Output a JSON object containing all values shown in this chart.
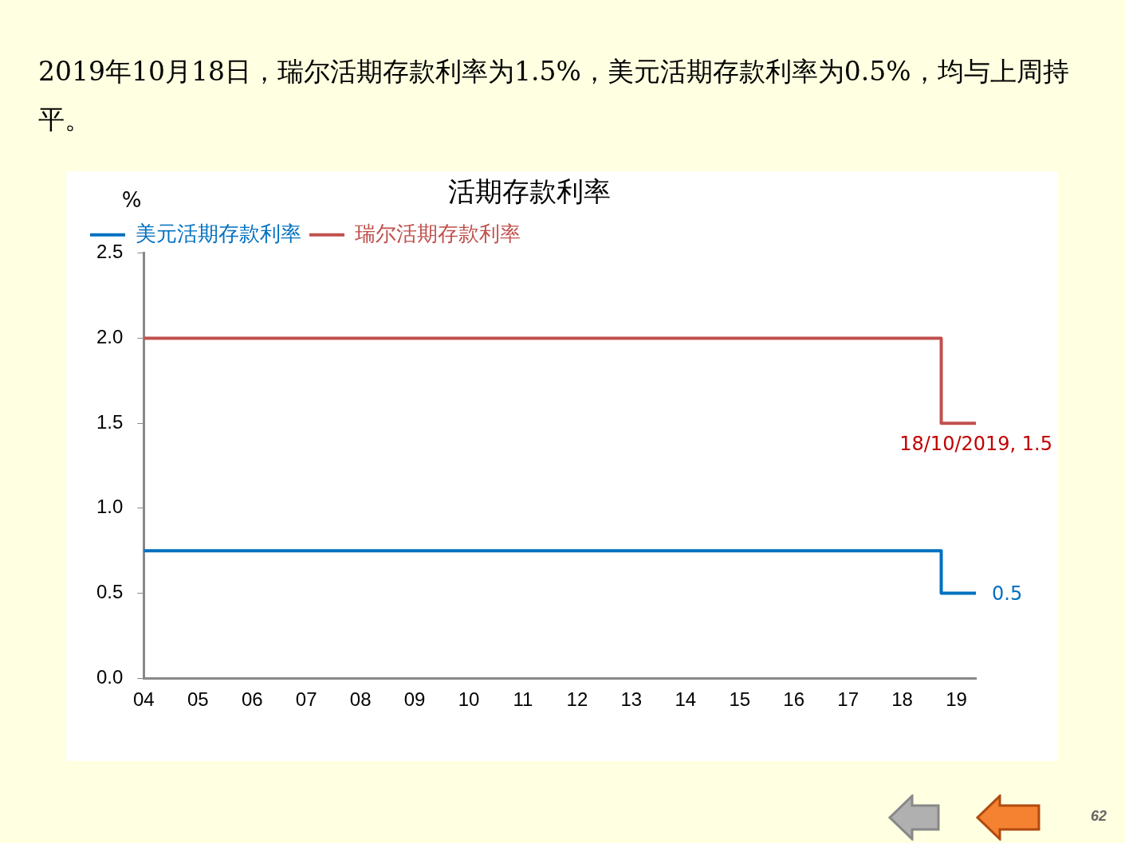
{
  "chart_data": {
    "type": "step",
    "title": "活期存款利率",
    "subtitle": "2019年10月18日，瑞尔活期存款利率为1.5%，美元活期存款利率为0.5%，均与上周持平。",
    "ylabel": "%",
    "x": [
      2004,
      2018.72,
      2019.36
    ],
    "series": [
      {
        "name": "美元活期存款利率",
        "color": "#0070c0",
        "values": [
          0.75,
          0.5,
          0.5
        ]
      },
      {
        "name": "瑞尔活期存款利率",
        "color": "#c0504d",
        "values": [
          2.0,
          1.5,
          1.5
        ]
      }
    ],
    "xlim": [
      2004,
      2019.36
    ],
    "xticks": [
      {
        "value": 2004,
        "label": "04"
      },
      {
        "value": 2005,
        "label": "05"
      },
      {
        "value": 2006,
        "label": "06"
      },
      {
        "value": 2007,
        "label": "07"
      },
      {
        "value": 2008,
        "label": "08"
      },
      {
        "value": 2009,
        "label": "09"
      },
      {
        "value": 2010,
        "label": "10"
      },
      {
        "value": 2011,
        "label": "11"
      },
      {
        "value": 2012,
        "label": "12"
      },
      {
        "value": 2013,
        "label": "13"
      },
      {
        "value": 2014,
        "label": "14"
      },
      {
        "value": 2015,
        "label": "15"
      },
      {
        "value": 2016,
        "label": "16"
      },
      {
        "value": 2017,
        "label": "17"
      },
      {
        "value": 2018,
        "label": "18"
      },
      {
        "value": 2019,
        "label": "19"
      }
    ],
    "ylim": [
      0,
      2.5
    ],
    "yticks": [
      {
        "value": 0,
        "label": "0.0"
      },
      {
        "value": 0.5,
        "label": "0.5"
      },
      {
        "value": 1,
        "label": "1.0"
      },
      {
        "value": 1.5,
        "label": "1.5"
      },
      {
        "value": 2,
        "label": "2.0"
      },
      {
        "value": 2.5,
        "label": "2.5"
      }
    ],
    "annotations": [
      {
        "text": "18/10/2019, 1.5",
        "x": 2019.36,
        "y": 1.5
      },
      {
        "text": "0.5",
        "x": 2019.36,
        "y": 0.5
      },
      "62"
    ],
    "grid": false,
    "legend": "top left",
    "marker": "none",
    "line_style": "solid"
  }
}
